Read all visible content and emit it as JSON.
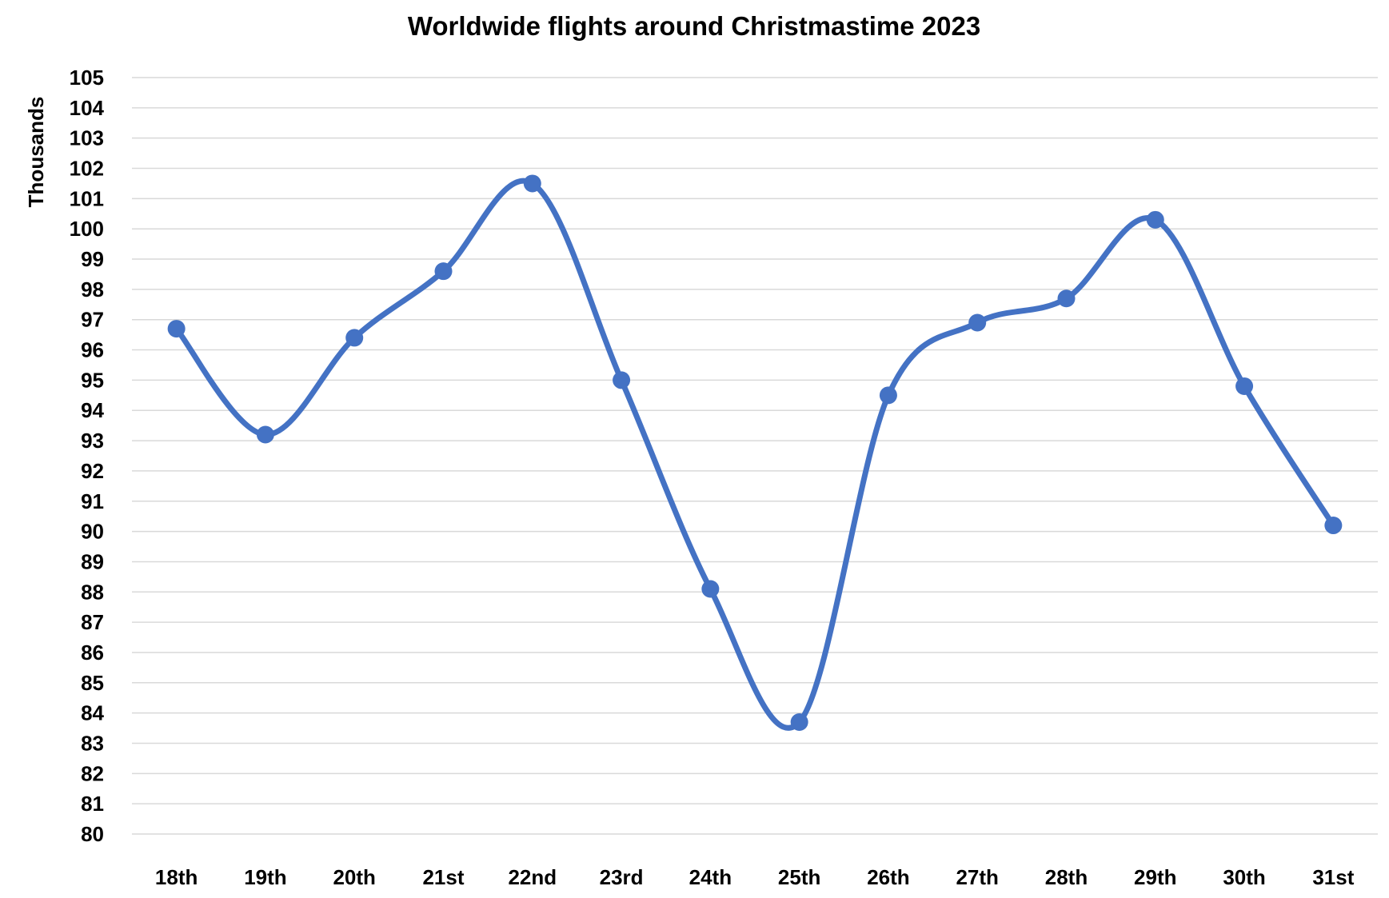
{
  "chart_data": {
    "type": "line",
    "title": "Worldwide flights around Christmastime 2023",
    "xlabel": "",
    "ylabel": "Thousands",
    "categories": [
      "18th",
      "19th",
      "20th",
      "21st",
      "22nd",
      "23rd",
      "24th",
      "25th",
      "26th",
      "27th",
      "28th",
      "29th",
      "30th",
      "31st"
    ],
    "series": [
      {
        "values": [
          96.7,
          93.2,
          96.4,
          98.6,
          101.5,
          95.0,
          88.1,
          83.7,
          94.5,
          96.9,
          97.7,
          100.3,
          94.8,
          90.2
        ]
      }
    ],
    "ylim": [
      80,
      105
    ],
    "ytick_step": 1,
    "smooth": true,
    "markers": true,
    "grid": true,
    "legend": "none",
    "colors": {
      "line": "#4472C4",
      "grid": "#D9D9D9"
    }
  }
}
